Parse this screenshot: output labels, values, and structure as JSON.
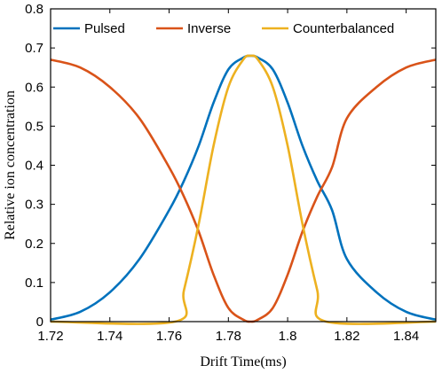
{
  "chart_data": {
    "type": "line",
    "xlabel": "Drift Time(ms)",
    "ylabel": "Relative ion concentration",
    "xlim": [
      1.72,
      1.85
    ],
    "ylim": [
      0,
      0.8
    ],
    "xticks": [
      "1.72",
      "1.74",
      "1.76",
      "1.78",
      "1.8",
      "1.82",
      "1.84"
    ],
    "yticks": [
      "0",
      "0.1",
      "0.2",
      "0.3",
      "0.4",
      "0.5",
      "0.6",
      "0.7",
      "0.8"
    ],
    "legend_position": "top",
    "grid": false,
    "series": [
      {
        "name": "Pulsed",
        "color": "#0072BD",
        "x": [
          1.72,
          1.73,
          1.74,
          1.75,
          1.76,
          1.765,
          1.77,
          1.775,
          1.78,
          1.785,
          1.7875,
          1.79,
          1.795,
          1.8,
          1.805,
          1.81,
          1.815,
          1.82,
          1.83,
          1.84,
          1.85
        ],
        "y": [
          0.005,
          0.025,
          0.075,
          0.16,
          0.285,
          0.36,
          0.45,
          0.56,
          0.645,
          0.675,
          0.68,
          0.675,
          0.645,
          0.56,
          0.45,
          0.36,
          0.285,
          0.16,
          0.075,
          0.025,
          0.005
        ]
      },
      {
        "name": "Inverse",
        "color": "#D95319",
        "x": [
          1.72,
          1.73,
          1.74,
          1.75,
          1.76,
          1.765,
          1.77,
          1.775,
          1.78,
          1.785,
          1.7875,
          1.79,
          1.795,
          1.8,
          1.805,
          1.81,
          1.815,
          1.82,
          1.83,
          1.84,
          1.85
        ],
        "y": [
          0.67,
          0.65,
          0.6,
          0.52,
          0.395,
          0.32,
          0.23,
          0.12,
          0.035,
          0.005,
          0.0,
          0.005,
          0.035,
          0.12,
          0.23,
          0.32,
          0.395,
          0.52,
          0.6,
          0.65,
          0.67
        ]
      },
      {
        "name": "Counterbalanced",
        "color": "#EDB120",
        "x": [
          1.72,
          1.762,
          1.765,
          1.77,
          1.775,
          1.78,
          1.785,
          1.7875,
          1.79,
          1.795,
          1.8,
          1.805,
          1.81,
          1.813,
          1.85
        ],
        "y": [
          0.0,
          0.0,
          0.08,
          0.25,
          0.45,
          0.6,
          0.67,
          0.68,
          0.67,
          0.6,
          0.45,
          0.25,
          0.08,
          0.0,
          0.0
        ]
      }
    ]
  }
}
